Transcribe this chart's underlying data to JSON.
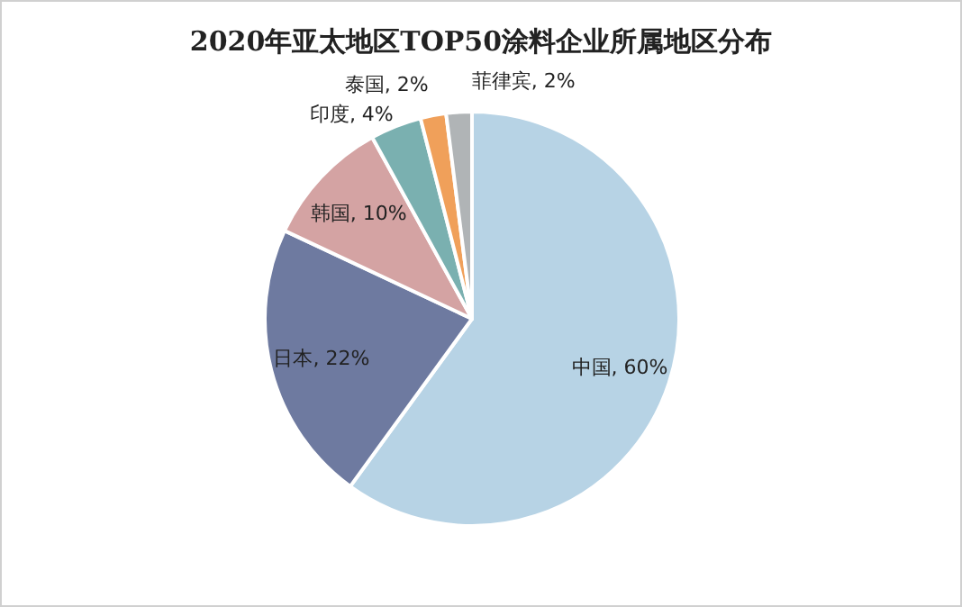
{
  "chart_data": {
    "type": "pie",
    "title": "2020年亚太地区TOP50涂料企业所属地区分布",
    "categories": [
      "中国",
      "日本",
      "韩国",
      "印度",
      "泰国",
      "菲律宾"
    ],
    "values": [
      60,
      22,
      10,
      4,
      2,
      2
    ],
    "colors": [
      "#b7d3e5",
      "#6e7aa0",
      "#d4a3a3",
      "#7ab0b0",
      "#f0a05a",
      "#b0b4b6"
    ],
    "value_labels": [
      "60%",
      "22%",
      "10%",
      "4%",
      "2%",
      "2%"
    ]
  }
}
